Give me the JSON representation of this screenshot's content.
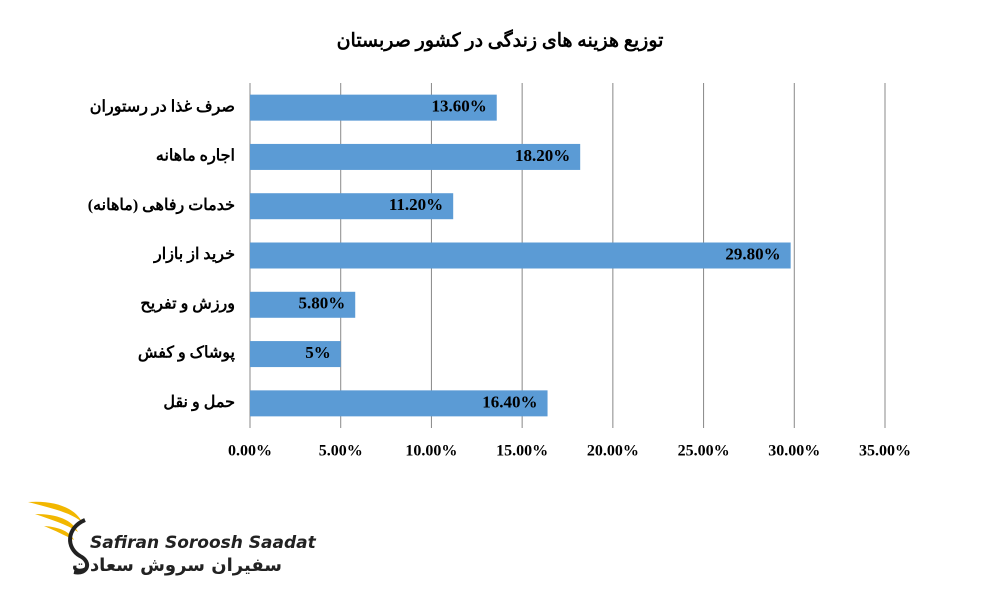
{
  "chart_data": {
    "type": "bar",
    "orientation": "horizontal",
    "title": "توزیع هزینه های زندگی در کشور صربستان",
    "categories": [
      "صرف غذا در رستوران",
      "اجاره ماهانه",
      "خدمات رفاهی (ماهانه)",
      "خرید از بازار",
      "ورزش و تفریح",
      "پوشاک و کفش",
      "حمل و نقل"
    ],
    "values": [
      13.6,
      18.2,
      11.2,
      29.8,
      5.8,
      5,
      16.4
    ],
    "value_labels": [
      "13.60%",
      "18.20%",
      "11.20%",
      "29.80%",
      "5.80%",
      "5%",
      "16.40%"
    ],
    "color": "#5b9bd5",
    "xlim": [
      0,
      35
    ],
    "xticks": [
      {
        "value": 0,
        "label": "0.00%"
      },
      {
        "value": 5,
        "label": "5.00%"
      },
      {
        "value": 10,
        "label": "10.00%"
      },
      {
        "value": 15,
        "label": "15.00%"
      },
      {
        "value": 20,
        "label": "20.00%"
      },
      {
        "value": 25,
        "label": "25.00%"
      },
      {
        "value": 30,
        "label": "30.00%"
      },
      {
        "value": 35,
        "label": "35.00%"
      }
    ],
    "grid": true
  },
  "logo": {
    "name_en": "Safiran Soroosh Saadat",
    "name_fa": "سفیران سروش سعادت"
  }
}
